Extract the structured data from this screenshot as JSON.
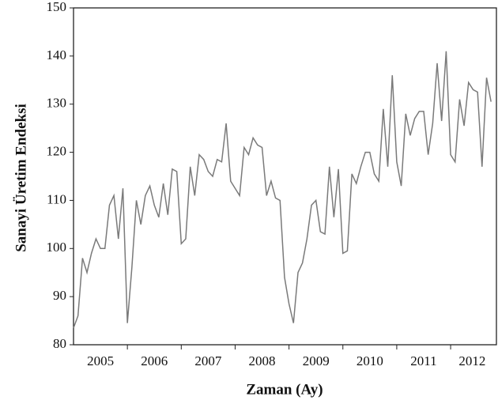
{
  "chart_data": {
    "type": "line",
    "y_label": "Sanayi Üretim Endeksi",
    "x_label": "Zaman (Ay)",
    "x": [
      2005,
      2005.083,
      2005.167,
      2005.25,
      2005.333,
      2005.417,
      2005.5,
      2005.583,
      2005.667,
      2005.75,
      2005.833,
      2005.917,
      2006,
      2006.083,
      2006.167,
      2006.25,
      2006.333,
      2006.417,
      2006.5,
      2006.583,
      2006.667,
      2006.75,
      2006.833,
      2006.917,
      2007,
      2007.083,
      2007.167,
      2007.25,
      2007.333,
      2007.417,
      2007.5,
      2007.583,
      2007.667,
      2007.75,
      2007.833,
      2007.917,
      2008,
      2008.083,
      2008.167,
      2008.25,
      2008.333,
      2008.417,
      2008.5,
      2008.583,
      2008.667,
      2008.75,
      2008.833,
      2008.917,
      2009,
      2009.083,
      2009.167,
      2009.25,
      2009.333,
      2009.417,
      2009.5,
      2009.583,
      2009.667,
      2009.75,
      2009.833,
      2009.917,
      2010,
      2010.083,
      2010.167,
      2010.25,
      2010.333,
      2010.417,
      2010.5,
      2010.583,
      2010.667,
      2010.75,
      2010.833,
      2010.917,
      2011,
      2011.083,
      2011.167,
      2011.25,
      2011.333,
      2011.417,
      2011.5,
      2011.583,
      2011.667,
      2011.75,
      2011.833,
      2011.917,
      2012,
      2012.083,
      2012.167,
      2012.25,
      2012.333,
      2012.417,
      2012.5,
      2012.583,
      2012.667,
      2012.75
    ],
    "series": [
      {
        "color": "#7a7a7a",
        "values": [
          83.5,
          86,
          98,
          95,
          99,
          102,
          100,
          100,
          109,
          111,
          102,
          112.5,
          84.5,
          96,
          110,
          105,
          111,
          113,
          109,
          106.5,
          113.5,
          107,
          116.5,
          116,
          101,
          102,
          117,
          111,
          119.5,
          118.5,
          116,
          115,
          118.5,
          118,
          126,
          114,
          112.5,
          111,
          121,
          119.5,
          123,
          121.5,
          121,
          111,
          114,
          110.5,
          110,
          94,
          88.5,
          84.5,
          95,
          97,
          102,
          109,
          110,
          103.5,
          103,
          117,
          106.5,
          116.5,
          99,
          99.5,
          115.5,
          113.5,
          117,
          120,
          120,
          115.5,
          114,
          129,
          117,
          136,
          118,
          113,
          128,
          123.5,
          127,
          128.5,
          128.5,
          119.5,
          126,
          138.5,
          126.5,
          141,
          119.5,
          118,
          131,
          125.5,
          134.5,
          133,
          132.5,
          117,
          135.5,
          130.5
        ]
      }
    ],
    "xlim": [
      2005,
      2012.85
    ],
    "xticks": [
      {
        "value": 2005.5,
        "label": "2005"
      },
      {
        "value": 2006.5,
        "label": "2006"
      },
      {
        "value": 2007.5,
        "label": "2007"
      },
      {
        "value": 2008.5,
        "label": "2008"
      },
      {
        "value": 2009.5,
        "label": "2009"
      },
      {
        "value": 2010.5,
        "label": "2010"
      },
      {
        "value": 2011.5,
        "label": "2011"
      },
      {
        "value": 2012.4,
        "label": "2012"
      }
    ],
    "x_tick_marks": [
      2006,
      2007,
      2008,
      2009,
      2010,
      2011,
      2012
    ],
    "ylim": [
      80,
      150
    ],
    "yticks": [
      80,
      90,
      100,
      110,
      120,
      130,
      140,
      150
    ],
    "grid": false
  }
}
